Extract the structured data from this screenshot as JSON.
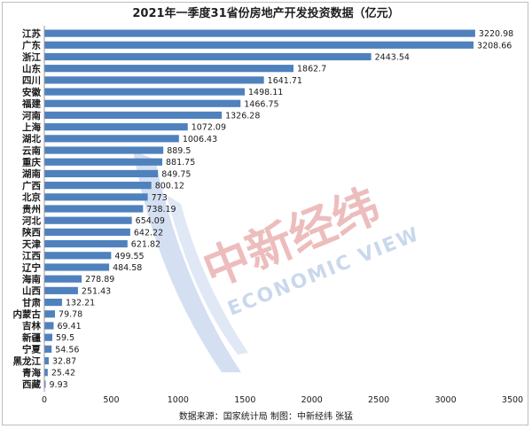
{
  "chart_data": {
    "type": "bar",
    "orientation": "horizontal",
    "title": "2021年一季度31省份房地产开发投资数据（亿元）",
    "categories": [
      "江苏",
      "广东",
      "浙江",
      "山东",
      "四川",
      "安徽",
      "福建",
      "河南",
      "上海",
      "湖北",
      "云南",
      "重庆",
      "湖南",
      "广西",
      "北京",
      "贵州",
      "河北",
      "陕西",
      "天津",
      "江西",
      "辽宁",
      "海南",
      "山西",
      "甘肃",
      "内蒙古",
      "吉林",
      "新疆",
      "宁夏",
      "黑龙江",
      "青海",
      "西藏"
    ],
    "values": [
      3220.98,
      3208.66,
      2443.54,
      1862.7,
      1641.71,
      1498.11,
      1466.75,
      1326.28,
      1072.09,
      1006.43,
      889.5,
      881.75,
      849.75,
      800.12,
      773,
      738.19,
      654.09,
      642.22,
      621.82,
      499.55,
      484.58,
      278.89,
      251.43,
      132.21,
      79.78,
      69.41,
      59.5,
      54.56,
      32.87,
      25.42,
      9.93
    ],
    "value_labels": [
      "3220.98",
      "3208.66",
      "2443.54",
      "1862.7",
      "1641.71",
      "1498.11",
      "1466.75",
      "1326.28",
      "1072.09",
      "1006.43",
      "889.5",
      "881.75",
      "849.75",
      "800.12",
      "773",
      "738.19",
      "654.09",
      "642.22",
      "621.82",
      "499.55",
      "484.58",
      "278.89",
      "251.43",
      "132.21",
      "79.78",
      "69.41",
      "59.5",
      "54.56",
      "32.87",
      "25.42",
      "9.93"
    ],
    "xlim": [
      0,
      3500
    ],
    "xticks": [
      "0",
      "500",
      "1000",
      "1500",
      "2000",
      "2500",
      "3000",
      "3500"
    ],
    "xtick_values": [
      0,
      500,
      1000,
      1500,
      2000,
      2500,
      3000,
      3500
    ],
    "grid": false,
    "legend": "none",
    "bar_color": "#4f81bd",
    "source": "数据来源：国家统计局  制图：中新经纬 张猛"
  },
  "watermark": {
    "cn_text": "中新经纬",
    "en_text": "ECONOMIC VIEW",
    "colors": {
      "cn": "#e8a7a7",
      "en": "#b9cbe6",
      "logo": "#c6d5ee"
    }
  }
}
